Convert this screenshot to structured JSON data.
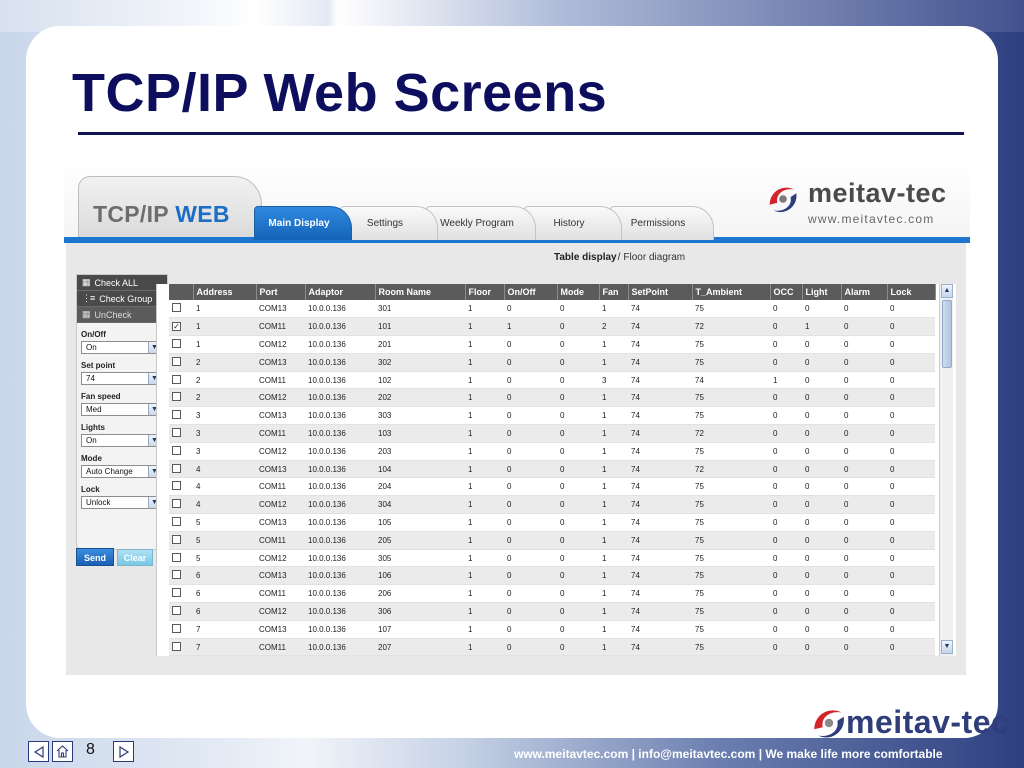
{
  "slide": {
    "title": "TCP/IP Web Screens",
    "page_number": "8",
    "footer_text": "www.meitavtec.com | info@meitavtec.com | We make life more comfortable",
    "footer_logo": "meitav-tec"
  },
  "app": {
    "logo_prefix": "TCP/IP ",
    "logo_suffix": "WEB",
    "brand_name": "meitav-tec",
    "brand_url": "www.meitavtec.com",
    "tabs": [
      {
        "label": "Main Display",
        "active": true
      },
      {
        "label": "Settings",
        "active": false
      },
      {
        "label": "Weekly Program",
        "active": false
      },
      {
        "label": "History",
        "active": false
      },
      {
        "label": "Permissions",
        "active": false
      }
    ],
    "view_switch": {
      "table": "Table display",
      "separator": "/",
      "floor": "Floor diagram"
    }
  },
  "left_panel": {
    "check_all": "Check ALL",
    "check_group": "Check Group",
    "uncheck": "UnCheck",
    "fields": [
      {
        "label": "On/Off",
        "value": "On"
      },
      {
        "label": "Set point",
        "value": "74"
      },
      {
        "label": "Fan speed",
        "value": "Med"
      },
      {
        "label": "Lights",
        "value": "On"
      },
      {
        "label": "Mode",
        "value": "Auto Change"
      },
      {
        "label": "Lock",
        "value": "Unlock"
      }
    ],
    "send": "Send",
    "clear": "Clear"
  },
  "table": {
    "columns": [
      "Address",
      "Port",
      "Adaptor",
      "Room Name",
      "Floor",
      "On/Off",
      "Mode",
      "Fan",
      "SetPoint",
      "T_Ambient",
      "OCC",
      "Light",
      "Alarm",
      "Lock"
    ],
    "rows": [
      {
        "checked": false,
        "cells": [
          "1",
          "COM13",
          "10.0.0.136",
          "301",
          "1",
          "0",
          "0",
          "1",
          "74",
          "75",
          "0",
          "0",
          "0",
          "0"
        ]
      },
      {
        "checked": true,
        "cells": [
          "1",
          "COM11",
          "10.0.0.136",
          "101",
          "1",
          "1",
          "0",
          "2",
          "74",
          "72",
          "0",
          "1",
          "0",
          "0"
        ]
      },
      {
        "checked": false,
        "cells": [
          "1",
          "COM12",
          "10.0.0.136",
          "201",
          "1",
          "0",
          "0",
          "1",
          "74",
          "75",
          "0",
          "0",
          "0",
          "0"
        ]
      },
      {
        "checked": false,
        "cells": [
          "2",
          "COM13",
          "10.0.0.136",
          "302",
          "1",
          "0",
          "0",
          "1",
          "74",
          "75",
          "0",
          "0",
          "0",
          "0"
        ]
      },
      {
        "checked": false,
        "cells": [
          "2",
          "COM11",
          "10.0.0.136",
          "102",
          "1",
          "0",
          "0",
          "3",
          "74",
          "74",
          "1",
          "0",
          "0",
          "0"
        ]
      },
      {
        "checked": false,
        "cells": [
          "2",
          "COM12",
          "10.0.0.136",
          "202",
          "1",
          "0",
          "0",
          "1",
          "74",
          "75",
          "0",
          "0",
          "0",
          "0"
        ]
      },
      {
        "checked": false,
        "cells": [
          "3",
          "COM13",
          "10.0.0.136",
          "303",
          "1",
          "0",
          "0",
          "1",
          "74",
          "75",
          "0",
          "0",
          "0",
          "0"
        ]
      },
      {
        "checked": false,
        "cells": [
          "3",
          "COM11",
          "10.0.0.136",
          "103",
          "1",
          "0",
          "0",
          "1",
          "74",
          "72",
          "0",
          "0",
          "0",
          "0"
        ]
      },
      {
        "checked": false,
        "cells": [
          "3",
          "COM12",
          "10.0.0.136",
          "203",
          "1",
          "0",
          "0",
          "1",
          "74",
          "75",
          "0",
          "0",
          "0",
          "0"
        ]
      },
      {
        "checked": false,
        "cells": [
          "4",
          "COM13",
          "10.0.0.136",
          "104",
          "1",
          "0",
          "0",
          "1",
          "74",
          "72",
          "0",
          "0",
          "0",
          "0"
        ]
      },
      {
        "checked": false,
        "cells": [
          "4",
          "COM11",
          "10.0.0.136",
          "204",
          "1",
          "0",
          "0",
          "1",
          "74",
          "75",
          "0",
          "0",
          "0",
          "0"
        ]
      },
      {
        "checked": false,
        "cells": [
          "4",
          "COM12",
          "10.0.0.136",
          "304",
          "1",
          "0",
          "0",
          "1",
          "74",
          "75",
          "0",
          "0",
          "0",
          "0"
        ]
      },
      {
        "checked": false,
        "cells": [
          "5",
          "COM13",
          "10.0.0.136",
          "105",
          "1",
          "0",
          "0",
          "1",
          "74",
          "75",
          "0",
          "0",
          "0",
          "0"
        ]
      },
      {
        "checked": false,
        "cells": [
          "5",
          "COM11",
          "10.0.0.136",
          "205",
          "1",
          "0",
          "0",
          "1",
          "74",
          "75",
          "0",
          "0",
          "0",
          "0"
        ]
      },
      {
        "checked": false,
        "cells": [
          "5",
          "COM12",
          "10.0.0.136",
          "305",
          "1",
          "0",
          "0",
          "1",
          "74",
          "75",
          "0",
          "0",
          "0",
          "0"
        ]
      },
      {
        "checked": false,
        "cells": [
          "6",
          "COM13",
          "10.0.0.136",
          "106",
          "1",
          "0",
          "0",
          "1",
          "74",
          "75",
          "0",
          "0",
          "0",
          "0"
        ]
      },
      {
        "checked": false,
        "cells": [
          "6",
          "COM11",
          "10.0.0.136",
          "206",
          "1",
          "0",
          "0",
          "1",
          "74",
          "75",
          "0",
          "0",
          "0",
          "0"
        ]
      },
      {
        "checked": false,
        "cells": [
          "6",
          "COM12",
          "10.0.0.136",
          "306",
          "1",
          "0",
          "0",
          "1",
          "74",
          "75",
          "0",
          "0",
          "0",
          "0"
        ]
      },
      {
        "checked": false,
        "cells": [
          "7",
          "COM13",
          "10.0.0.136",
          "107",
          "1",
          "0",
          "0",
          "1",
          "74",
          "75",
          "0",
          "0",
          "0",
          "0"
        ]
      },
      {
        "checked": false,
        "cells": [
          "7",
          "COM11",
          "10.0.0.136",
          "207",
          "1",
          "0",
          "0",
          "1",
          "74",
          "75",
          "0",
          "0",
          "0",
          "0"
        ]
      }
    ]
  },
  "colors": {
    "title": "#0d0f5e",
    "accent_blue": "#1d76cf",
    "header_gray": "#5b5b5b"
  }
}
